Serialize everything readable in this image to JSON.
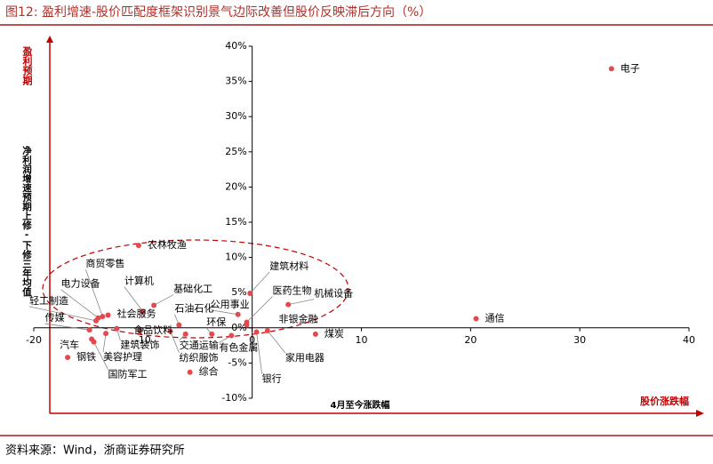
{
  "chart_data": {
    "type": "scatter",
    "title": "图12:  盈利增速-股价匹配度框架识别景气边际改善但股价反映滞后方向（%）",
    "source": "资料来源：Wind，浙商证券研究所",
    "y_label_top": "盈利预期",
    "y_label": "净利润增速预期上修-下修三年均值",
    "x_label": "4月至今涨跌幅",
    "x_label_right": "股价涨跌幅",
    "xlim": [
      -20,
      40
    ],
    "xticks": [
      -20,
      -10,
      0,
      10,
      20,
      30,
      40
    ],
    "ylim": [
      -10,
      40
    ],
    "yticks": [
      {
        "value": -10,
        "label": "-10%"
      },
      {
        "value": -5,
        "label": "-5%"
      },
      {
        "value": 0,
        "label": "0%"
      },
      {
        "value": 5,
        "label": "5%"
      },
      {
        "value": 10,
        "label": "10%"
      },
      {
        "value": 15,
        "label": "15%"
      },
      {
        "value": 20,
        "label": "20%"
      },
      {
        "value": 25,
        "label": "25%"
      },
      {
        "value": 30,
        "label": "30%"
      },
      {
        "value": 35,
        "label": "35%"
      },
      {
        "value": 40,
        "label": "40%"
      }
    ],
    "series": [
      {
        "color": "#e5484d",
        "point_labels": [
          "电子",
          "通信",
          "煤炭",
          "建筑材料",
          "公用事业",
          "医药生物",
          "机械设备",
          "非银金融",
          "家用电器",
          "银行",
          "有色金属",
          "环保",
          "交通运输",
          "纺织服饰",
          "综合",
          "石油石化",
          "基础化工",
          "计算机",
          "农林牧渔",
          "商贸零售",
          "电力设备",
          "轻工制造",
          "社会服务",
          "传媒",
          "汽车",
          "钢铁",
          "建筑装饰",
          "美容护理",
          "国防军工",
          "食品饮料"
        ],
        "x": [
          32.9,
          20.5,
          5.8,
          -0.2,
          -1.3,
          -0.5,
          3.3,
          -0.5,
          1.4,
          0.4,
          -1.9,
          -3.7,
          -6.1,
          -7.5,
          -5.7,
          -6.7,
          -9.0,
          -10.0,
          -10.4,
          -13.7,
          -14.1,
          -14.3,
          -13.2,
          -14.9,
          -14.7,
          -16.9,
          -12.4,
          -13.4,
          -14.5,
          -10.3
        ],
        "values": [
          36.8,
          1.3,
          -0.9,
          4.9,
          1.9,
          0.8,
          3.3,
          0.4,
          -0.4,
          -0.6,
          -1.1,
          -0.9,
          -0.9,
          -0.5,
          -6.3,
          0.4,
          3.2,
          2.3,
          11.7,
          1.6,
          1.4,
          1.0,
          1.8,
          -0.3,
          -1.6,
          -4.2,
          -0.1,
          -0.8,
          -2.0,
          -0.4
        ]
      }
    ]
  }
}
